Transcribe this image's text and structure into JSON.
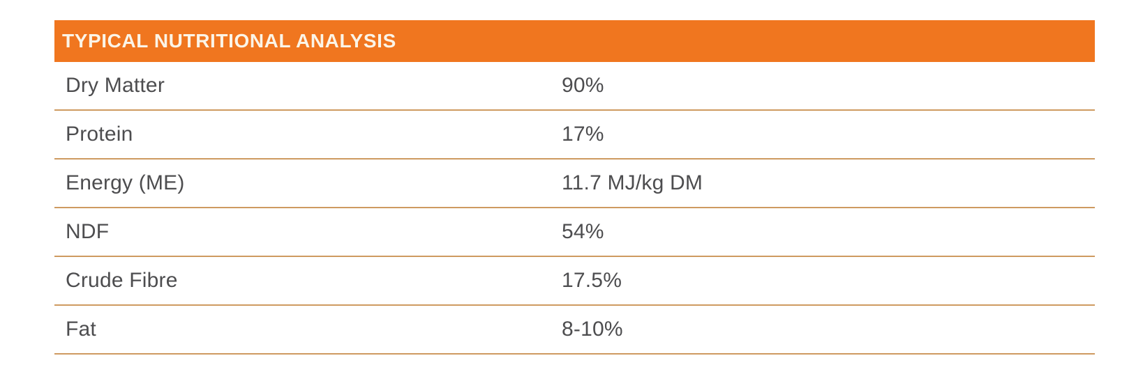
{
  "table": {
    "title": "TYPICAL NUTRITIONAL ANALYSIS",
    "rows": [
      {
        "label": "Dry Matter",
        "value": "90%"
      },
      {
        "label": "Protein",
        "value": "17%"
      },
      {
        "label": "Energy (ME)",
        "value": "11.7 MJ/kg DM"
      },
      {
        "label": "NDF",
        "value": "54%"
      },
      {
        "label": "Crude Fibre",
        "value": "17.5%"
      },
      {
        "label": "Fat",
        "value": "8-10%"
      }
    ],
    "colors": {
      "header_bg": "#F0761F",
      "header_text": "#FBF4E7",
      "divider": "#CE9A60",
      "row_text": "#4D4D4F"
    }
  }
}
